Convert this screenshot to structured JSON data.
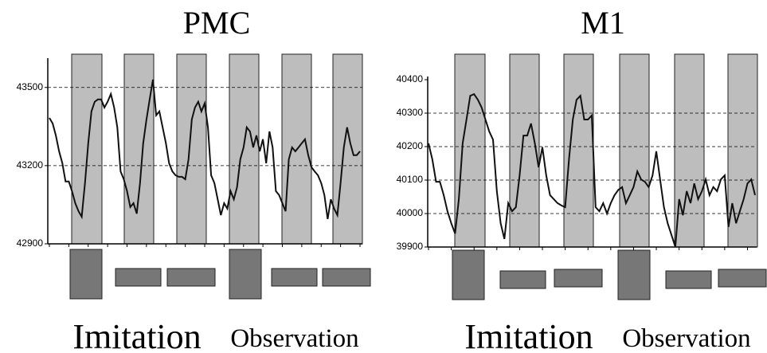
{
  "chart_data": [
    {
      "type": "line",
      "title": "PMC",
      "annotations": [
        "Imitation",
        "Observation"
      ],
      "ylim": [
        42900,
        43600
      ],
      "yticks": [
        42900,
        43200,
        43500
      ],
      "grid": true,
      "color": "#111111",
      "values": [
        43383,
        43362,
        43316,
        43255,
        43209,
        43139,
        43139,
        43102,
        43056,
        43025,
        43004,
        43133,
        43286,
        43408,
        43445,
        43454,
        43454,
        43423,
        43445,
        43475,
        43423,
        43347,
        43178,
        43148,
        43102,
        43041,
        43056,
        43016,
        43133,
        43286,
        43377,
        43454,
        43530,
        43393,
        43408,
        43347,
        43286,
        43209,
        43178,
        43163,
        43157,
        43157,
        43148,
        43224,
        43377,
        43423,
        43445,
        43408,
        43439,
        43347,
        43163,
        43133,
        43071,
        43010,
        43056,
        43035,
        43102,
        43071,
        43117,
        43224,
        43270,
        43347,
        43331,
        43270,
        43316,
        43255,
        43301,
        43209,
        43331,
        43270,
        43102,
        43087,
        43056,
        43025,
        43224,
        43270,
        43255,
        43270,
        43286,
        43301,
        43240,
        43194,
        43178,
        43163,
        43133,
        43087,
        42995,
        43071,
        43035,
        43010,
        43133,
        43270,
        43347,
        43286,
        43240,
        43240,
        43255
      ]
    },
    {
      "type": "line",
      "title": "M1",
      "annotations": [
        "Imitation",
        "Observation"
      ],
      "ylim": [
        39900,
        40400
      ],
      "yticks": [
        39900,
        40000,
        40100,
        40200,
        40300,
        40400
      ],
      "grid": true,
      "color": "#111111",
      "values": [
        40210,
        40162,
        40095,
        40095,
        40055,
        40007,
        39971,
        39940,
        40043,
        40210,
        40281,
        40352,
        40357,
        40340,
        40317,
        40281,
        40245,
        40221,
        40067,
        39971,
        39924,
        40031,
        40007,
        40019,
        40114,
        40233,
        40233,
        40269,
        40210,
        40138,
        40198,
        40114,
        40055,
        40043,
        40031,
        40024,
        40019,
        40162,
        40281,
        40340,
        40352,
        40281,
        40281,
        40293,
        40019,
        40007,
        40031,
        40000,
        40031,
        40055,
        40071,
        40079,
        40031,
        40055,
        40079,
        40126,
        40102,
        40095,
        40079,
        40114,
        40186,
        40102,
        40019,
        39971,
        39936,
        39900,
        40043,
        39995,
        40067,
        40031,
        40090,
        40043,
        40067,
        40102,
        40055,
        40079,
        40067,
        40102,
        40114,
        39960,
        40031,
        39971,
        40007,
        40043,
        40090,
        40102,
        40055
      ]
    }
  ]
}
